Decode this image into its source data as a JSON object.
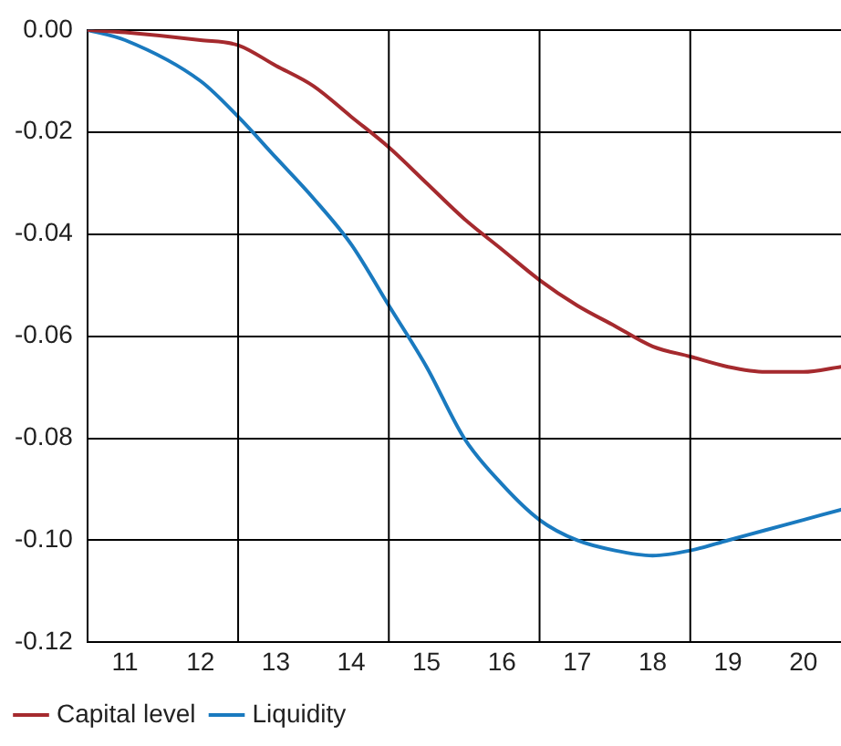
{
  "chart_data": {
    "type": "line",
    "xlim": [
      10.5,
      20.5
    ],
    "xticks": [
      11,
      12,
      13,
      14,
      15,
      16,
      17,
      18,
      19,
      20
    ],
    "ylim": [
      -0.12,
      0
    ],
    "yticks": [
      {
        "value": -0.12,
        "label": "-0.12"
      },
      {
        "value": -0.1,
        "label": "-0.10"
      },
      {
        "value": -0.08,
        "label": "-0.08"
      },
      {
        "value": -0.06,
        "label": "-0.06"
      },
      {
        "value": -0.04,
        "label": "-0.04"
      },
      {
        "value": -0.02,
        "label": "-0.02"
      },
      {
        "value": 0,
        "label": "0.00"
      }
    ],
    "grid": "y",
    "legend": "bottom left",
    "marker": "none",
    "line_style": "solid",
    "ref_lines": [
      {
        "axis": "x",
        "value": 12.5,
        "color": "#000000"
      },
      {
        "axis": "x",
        "value": 14.5,
        "color": "#000000"
      },
      {
        "axis": "x",
        "value": 16.5,
        "color": "#000000"
      },
      {
        "axis": "x",
        "value": 18.5,
        "color": "#000000"
      }
    ],
    "x": [
      10.5,
      11,
      12,
      12.5,
      13,
      13.5,
      14,
      14.5,
      15,
      15.5,
      16,
      16.5,
      17,
      17.5,
      18,
      18.5,
      19,
      19.5,
      20,
      20.5
    ],
    "series": [
      {
        "name": "Capital level",
        "color": "#a52a2e",
        "values": [
          0,
          -0.0005,
          -0.002,
          -0.003,
          -0.007,
          -0.011,
          -0.017,
          -0.023,
          -0.03,
          -0.037,
          -0.043,
          -0.049,
          -0.054,
          -0.058,
          -0.062,
          -0.064,
          -0.066,
          -0.067,
          -0.067,
          -0.066
        ]
      },
      {
        "name": "Liquidity",
        "color": "#1a7abf",
        "values": [
          0,
          -0.002,
          -0.01,
          -0.017,
          -0.025,
          -0.033,
          -0.042,
          -0.054,
          -0.066,
          -0.08,
          -0.089,
          -0.096,
          -0.1,
          -0.102,
          -0.103,
          -0.102,
          -0.1,
          -0.098,
          -0.096,
          -0.094
        ]
      }
    ]
  }
}
